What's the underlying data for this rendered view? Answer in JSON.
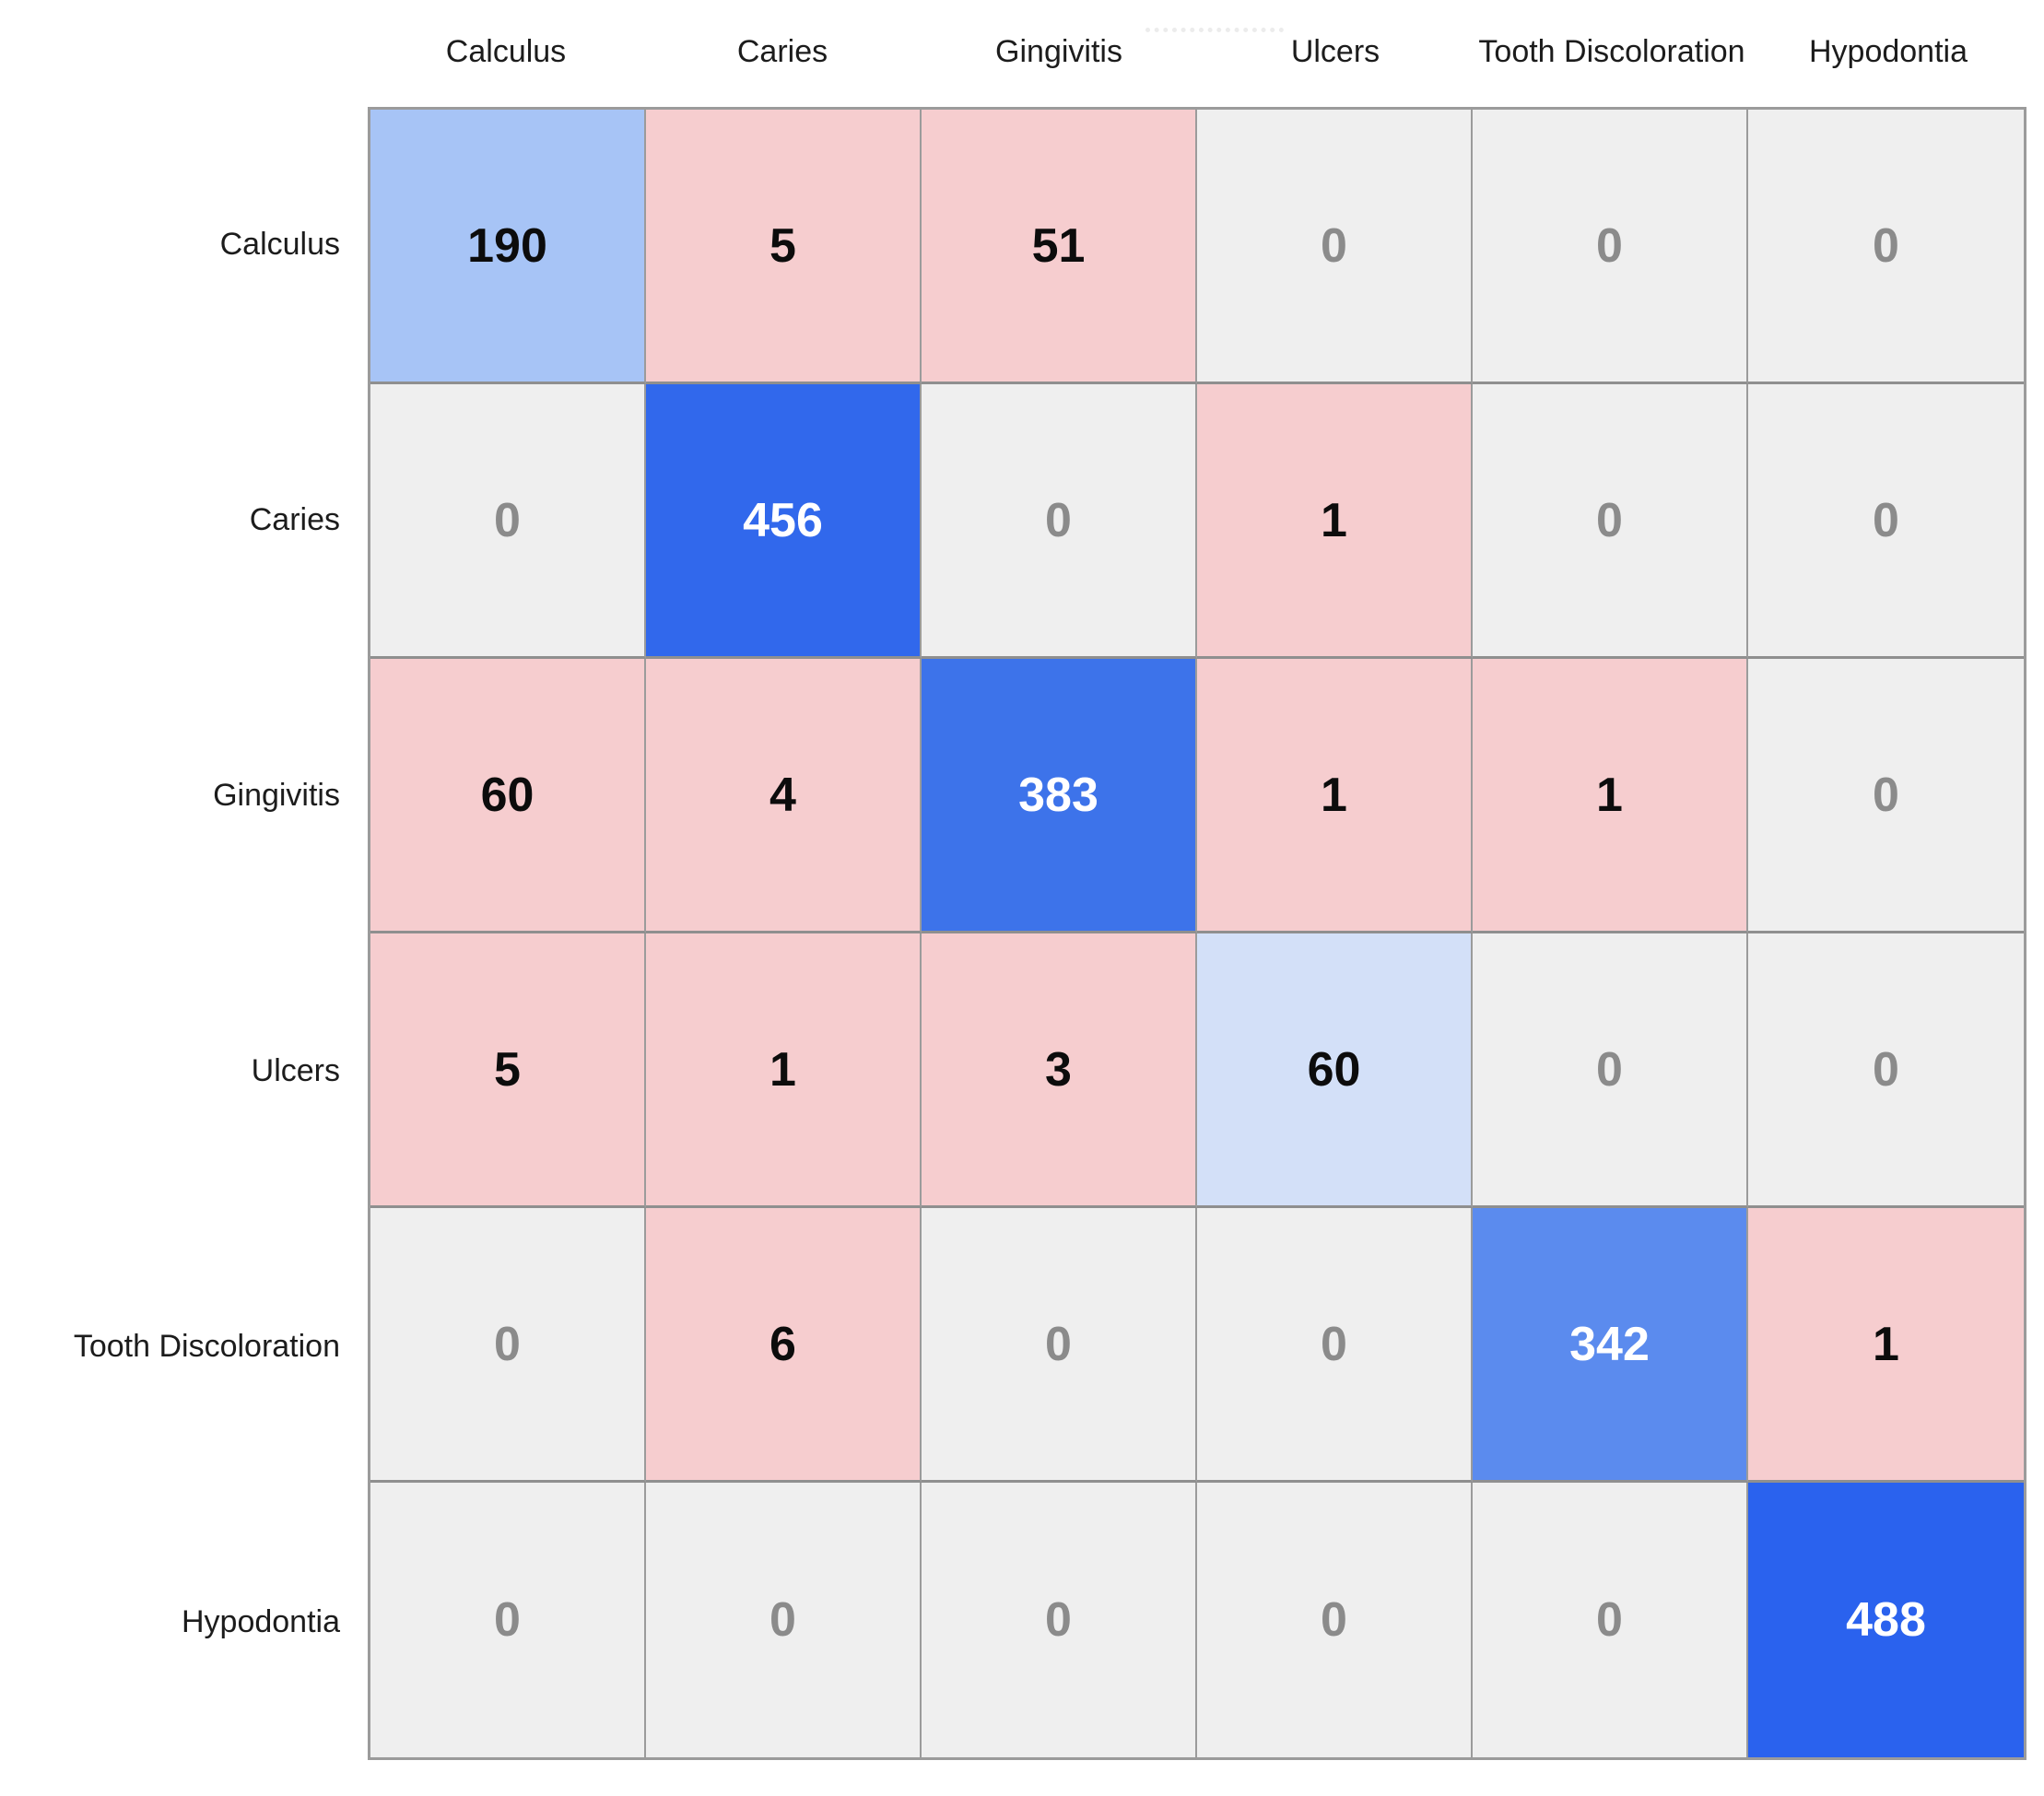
{
  "chart_data": {
    "type": "heatmap",
    "subtype": "confusion-matrix",
    "title": "",
    "x_labels": [
      "Calculus",
      "Caries",
      "Gingivitis",
      "Ulcers",
      "Tooth Discoloration",
      "Hypodontia"
    ],
    "y_labels": [
      "Calculus",
      "Caries",
      "Gingivitis",
      "Ulcers",
      "Tooth Discoloration",
      "Hypodontia"
    ],
    "matrix": [
      [
        190,
        5,
        51,
        0,
        0,
        0
      ],
      [
        0,
        456,
        0,
        1,
        0,
        0
      ],
      [
        60,
        4,
        383,
        1,
        1,
        0
      ],
      [
        5,
        1,
        3,
        60,
        0,
        0
      ],
      [
        0,
        6,
        0,
        0,
        342,
        1
      ],
      [
        0,
        0,
        0,
        0,
        0,
        488
      ]
    ],
    "cell_background_colors": [
      [
        "#a7c4f6",
        "#f6cdcf",
        "#f6cdcf",
        "#efefef",
        "#efefef",
        "#efefef"
      ],
      [
        "#efefef",
        "#3168ec",
        "#efefef",
        "#f6cdcf",
        "#efefef",
        "#efefef"
      ],
      [
        "#f6cdcf",
        "#f6cdcf",
        "#3d73ea",
        "#f6cdcf",
        "#f6cdcf",
        "#efefef"
      ],
      [
        "#f6cdcf",
        "#f6cdcf",
        "#f6cdcf",
        "#d3e0f8",
        "#efefef",
        "#efefef"
      ],
      [
        "#efefef",
        "#f6cdcf",
        "#efefef",
        "#efefef",
        "#5b8bee",
        "#f6cdcf"
      ],
      [
        "#efefef",
        "#efefef",
        "#efefef",
        "#efefef",
        "#efefef",
        "#2a62ee"
      ]
    ],
    "cell_text_colors": [
      [
        "#0c0c0c",
        "#0c0c0c",
        "#0c0c0c",
        "#8b8b8b",
        "#8b8b8b",
        "#8b8b8b"
      ],
      [
        "#8b8b8b",
        "#ffffff",
        "#8b8b8b",
        "#0c0c0c",
        "#8b8b8b",
        "#8b8b8b"
      ],
      [
        "#0c0c0c",
        "#0c0c0c",
        "#ffffff",
        "#0c0c0c",
        "#0c0c0c",
        "#8b8b8b"
      ],
      [
        "#0c0c0c",
        "#0c0c0c",
        "#0c0c0c",
        "#0c0c0c",
        "#8b8b8b",
        "#8b8b8b"
      ],
      [
        "#8b8b8b",
        "#0c0c0c",
        "#8b8b8b",
        "#8b8b8b",
        "#ffffff",
        "#0c0c0c"
      ],
      [
        "#8b8b8b",
        "#8b8b8b",
        "#8b8b8b",
        "#8b8b8b",
        "#8b8b8b",
        "#ffffff"
      ]
    ],
    "palette": {
      "diagonal_high": "#2a62ee",
      "diagonal_low": "#d3e0f8",
      "off_diagonal_nonzero": "#f6cdcf",
      "zero_cell": "#efefef",
      "grid_line": "#9b9b9b",
      "zero_text": "#8b8b8b",
      "dark_text": "#0c0c0c",
      "light_text": "#ffffff"
    },
    "legend_position": "none",
    "grid": true
  }
}
